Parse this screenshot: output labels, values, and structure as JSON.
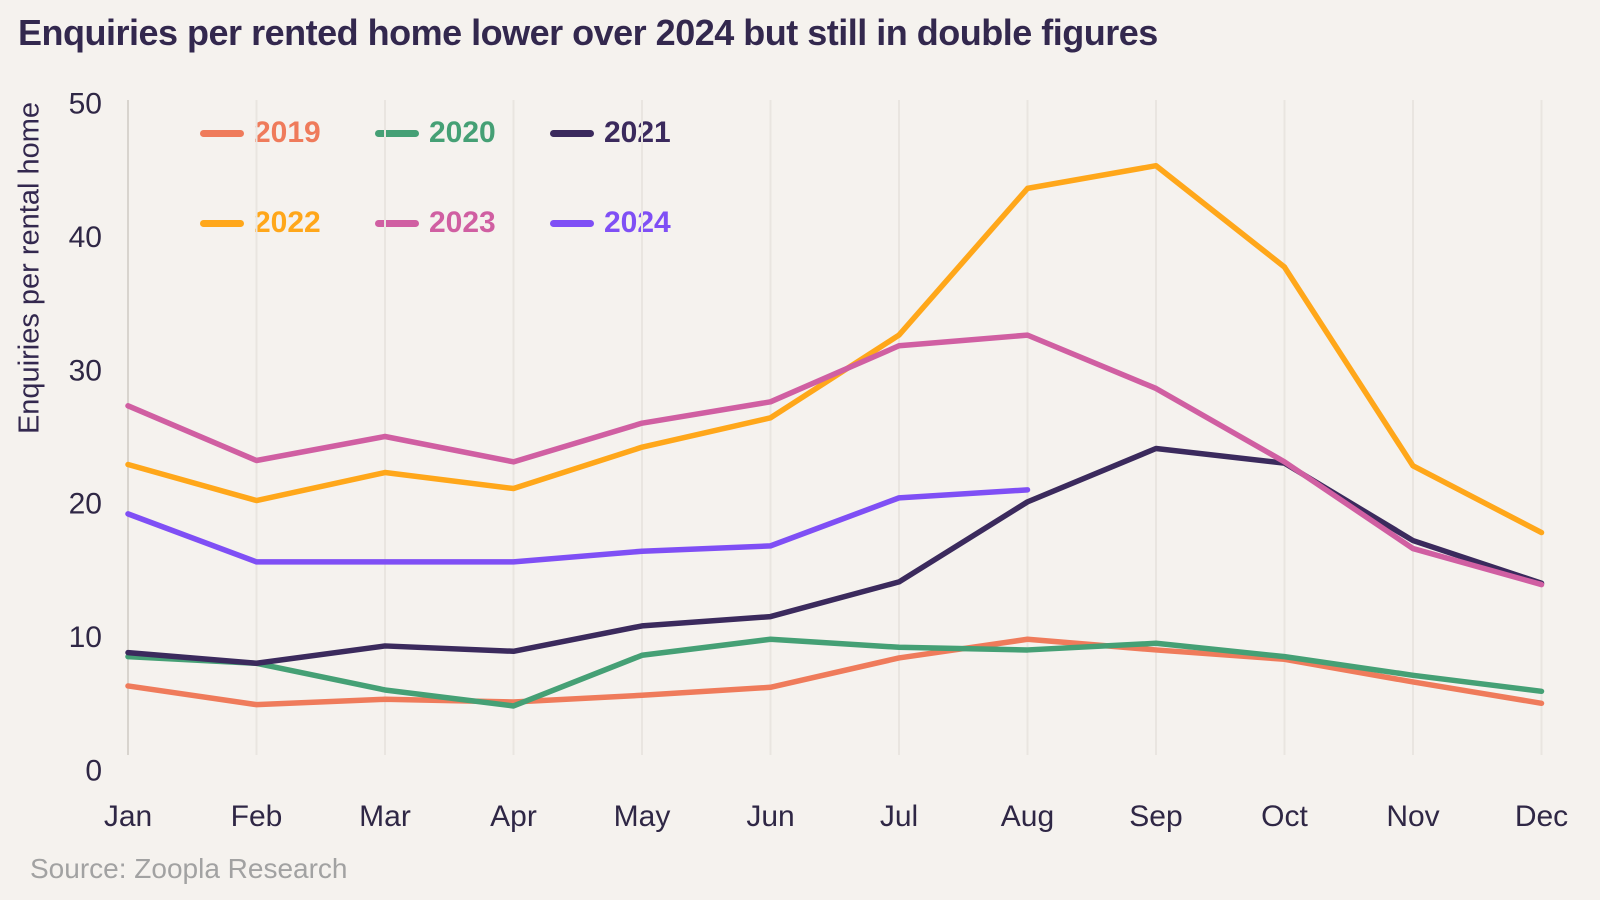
{
  "title": "Enquiries per rented home lower over 2024 but still in double figures",
  "source": "Source: Zoopla Research",
  "colors": {
    "background": "#f5f2ee",
    "gridline": "#e9e5e0",
    "axis_line": "#d8d4ce",
    "title_text": "#33284e",
    "tick_text": "#2f2745",
    "source_text": "#a2a2a2"
  },
  "chart_data": {
    "type": "line",
    "title": "Enquiries per rented home lower over 2024 but still in double figures",
    "xlabel": "",
    "ylabel": "Enquiries per rental home",
    "categories": [
      "Jan",
      "Feb",
      "Mar",
      "Apr",
      "May",
      "Jun",
      "Jul",
      "Aug",
      "Sep",
      "Oct",
      "Nov",
      "Dec"
    ],
    "yticks": [
      0,
      10,
      20,
      30,
      40,
      50
    ],
    "ylim": [
      0,
      50
    ],
    "grid": "vertical-only",
    "legend_position": "top-left-two-rows",
    "series": [
      {
        "name": "2019",
        "color": "#ef7b5b",
        "values": [
          6.3,
          4.9,
          5.3,
          5.1,
          5.6,
          6.2,
          8.4,
          9.8,
          9.0,
          8.3,
          6.6,
          5.0
        ]
      },
      {
        "name": "2020",
        "color": "#45a075",
        "values": [
          8.5,
          8.0,
          6.0,
          4.8,
          8.6,
          9.8,
          9.2,
          9.0,
          9.5,
          8.5,
          7.1,
          5.9
        ]
      },
      {
        "name": "2021",
        "color": "#3b2a5d",
        "values": [
          8.8,
          8.0,
          9.3,
          8.9,
          10.8,
          11.5,
          14.1,
          20.1,
          24.1,
          23.0,
          17.2,
          14.0
        ]
      },
      {
        "name": "2022",
        "color": "#ffa71a",
        "values": [
          22.9,
          20.2,
          22.3,
          21.1,
          24.2,
          26.4,
          32.6,
          43.6,
          45.3,
          37.7,
          22.8,
          17.8
        ]
      },
      {
        "name": "2023",
        "color": "#d05fa2",
        "values": [
          27.3,
          23.2,
          25.0,
          23.1,
          26.0,
          27.6,
          31.8,
          32.6,
          28.6,
          23.1,
          16.6,
          13.9
        ]
      },
      {
        "name": "2024",
        "color": "#7f4ff5",
        "values": [
          19.2,
          15.6,
          15.6,
          15.6,
          16.4,
          16.8,
          20.4,
          21.0
        ]
      }
    ]
  }
}
